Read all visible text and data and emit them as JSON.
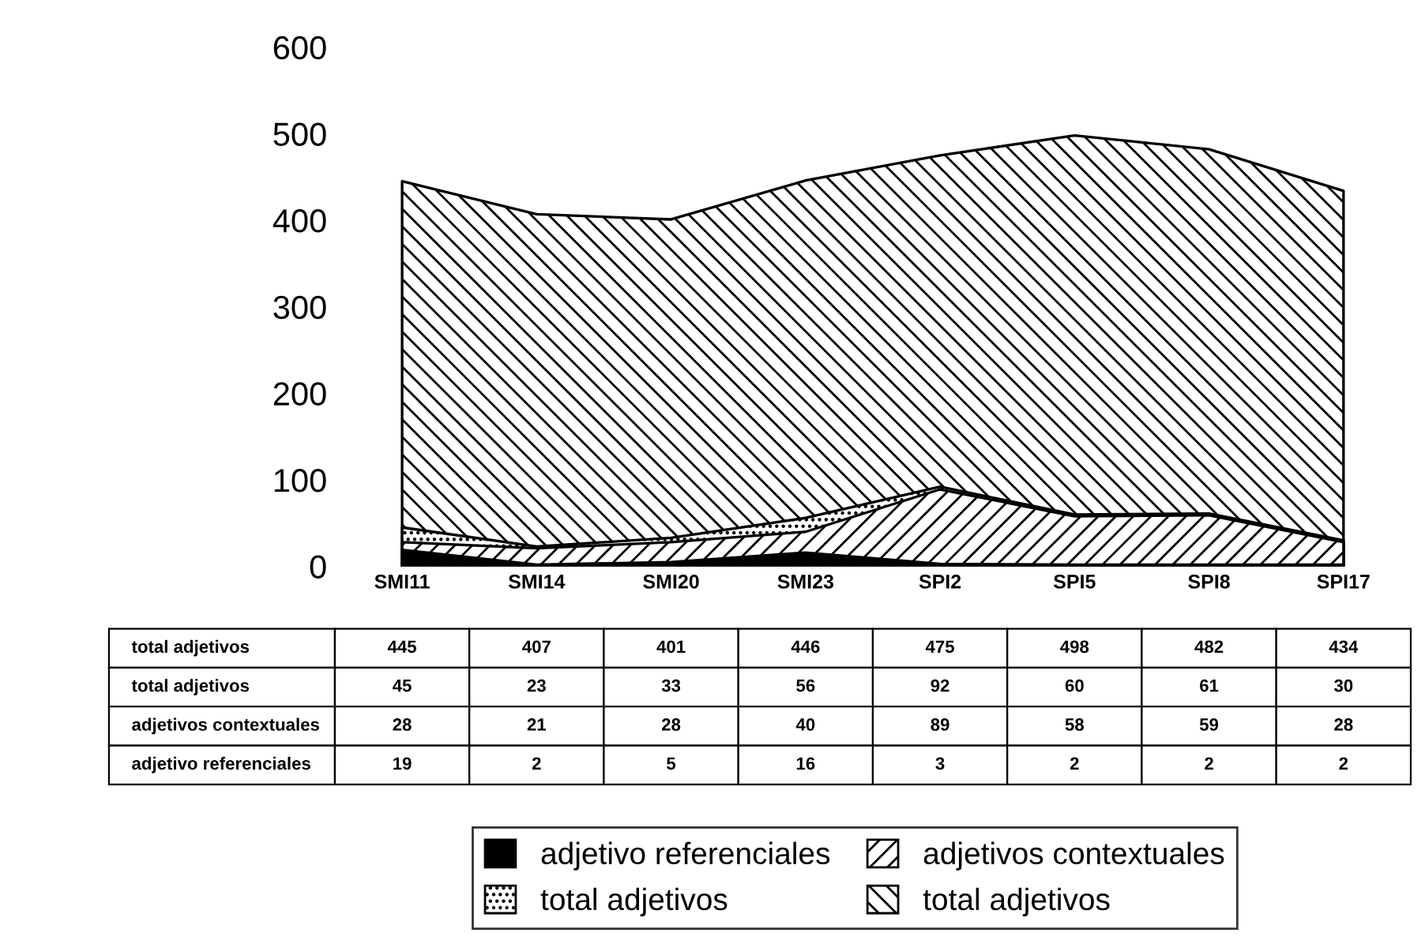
{
  "chart_data": {
    "type": "area",
    "categories": [
      "SMI11",
      "SMI14",
      "SMI20",
      "SMI23",
      "SPI2",
      "SPI5",
      "SPI8",
      "SPI17"
    ],
    "series": [
      {
        "name": "total adjetivos",
        "color": "#000000",
        "values": [
          445,
          407,
          401,
          446,
          475,
          498,
          482,
          434
        ]
      },
      {
        "name": "total adjetivos",
        "color": "#000000",
        "values": [
          45,
          23,
          33,
          56,
          92,
          60,
          61,
          30
        ]
      },
      {
        "name": "adjetivos contextuales",
        "color": "#000000",
        "values": [
          28,
          21,
          28,
          40,
          89,
          58,
          59,
          28
        ]
      },
      {
        "name": "adjetivo referenciales",
        "color": "#000000",
        "values": [
          19,
          2,
          5,
          16,
          3,
          2,
          2,
          2
        ]
      }
    ],
    "ylim": [
      0,
      600
    ],
    "yticks": [
      0,
      100,
      200,
      300,
      400,
      500,
      600
    ],
    "data_labels": true,
    "grid": false,
    "legend": "bottom"
  }
}
